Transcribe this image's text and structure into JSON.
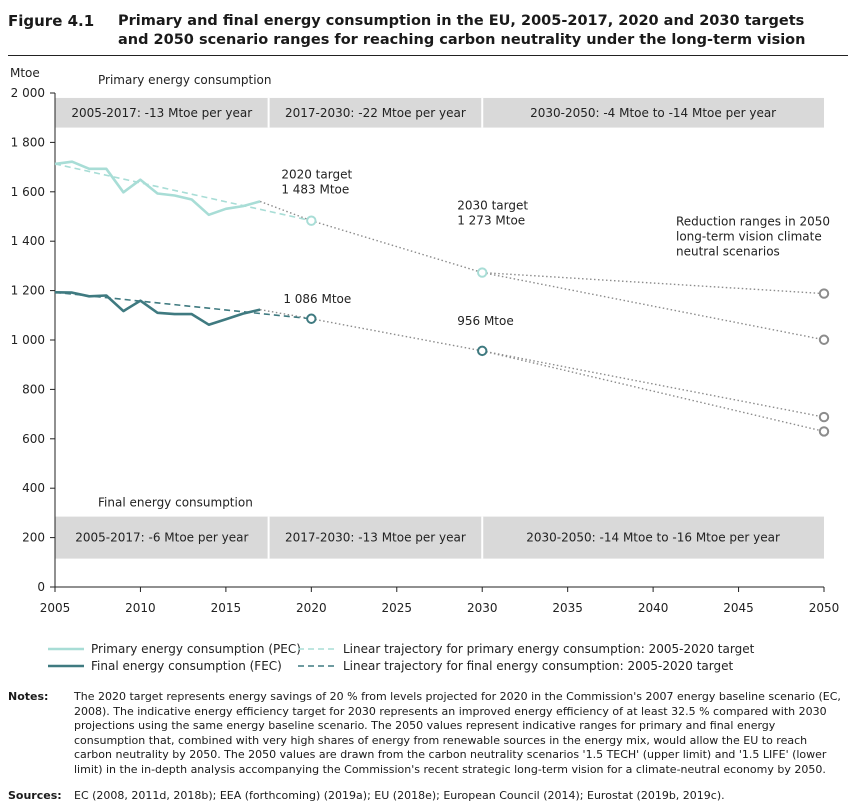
{
  "figure": {
    "number": "Figure 4.1",
    "title": "Primary and final energy consumption in the EU, 2005-2017, 2020 and 2030 targets and 2050 scenario ranges for reaching carbon neutrality under the long-term vision"
  },
  "chart_data": {
    "type": "line",
    "ylabel": "Mtoe",
    "xlim": [
      2005,
      2050
    ],
    "ylim": [
      0,
      2000
    ],
    "xticks": [
      2005,
      2010,
      2015,
      2020,
      2025,
      2030,
      2035,
      2040,
      2045,
      2050
    ],
    "yticks": [
      0,
      200,
      400,
      600,
      800,
      1000,
      1200,
      1400,
      1600,
      1800,
      2000
    ],
    "ytick_labels": [
      "0",
      "200",
      "400",
      "600",
      "800",
      "1 000",
      "1 200",
      "1 400",
      "1 600",
      "1 800",
      "2 000"
    ],
    "colors": {
      "pec": "#a8ddd6",
      "fec": "#3f7a80",
      "band": "#d9d9d9",
      "projection": "#8c8c8c"
    },
    "series": [
      {
        "name": "Primary energy consumption (PEC)",
        "x": [
          2005,
          2006,
          2007,
          2008,
          2009,
          2010,
          2011,
          2012,
          2013,
          2014,
          2015,
          2016,
          2017
        ],
        "y": [
          1713,
          1722,
          1693,
          1693,
          1598,
          1649,
          1593,
          1585,
          1569,
          1507,
          1531,
          1542,
          1561
        ]
      },
      {
        "name": "Final energy consumption (FEC)",
        "x": [
          2005,
          2006,
          2007,
          2008,
          2009,
          2010,
          2011,
          2012,
          2013,
          2014,
          2015,
          2016,
          2017
        ],
        "y": [
          1193,
          1192,
          1177,
          1180,
          1117,
          1159,
          1110,
          1105,
          1105,
          1062,
          1084,
          1107,
          1123
        ]
      },
      {
        "name": "Linear trajectory for primary energy consumption: 2005-2020 target",
        "x": [
          2005,
          2020
        ],
        "y": [
          1713,
          1483
        ]
      },
      {
        "name": "Linear trajectory for final energy consumption: 2005-2020 target",
        "x": [
          2005,
          2020
        ],
        "y": [
          1193,
          1086
        ]
      }
    ],
    "projections": [
      {
        "from": [
          2017,
          1561
        ],
        "to": [
          2020,
          1483
        ]
      },
      {
        "from": [
          2020,
          1483
        ],
        "to": [
          2030,
          1273
        ]
      },
      {
        "from": [
          2030,
          1273
        ],
        "to": [
          2050,
          1188
        ]
      },
      {
        "from": [
          2030,
          1273
        ],
        "to": [
          2050,
          1001
        ]
      },
      {
        "from": [
          2017,
          1123
        ],
        "to": [
          2020,
          1086
        ]
      },
      {
        "from": [
          2020,
          1086
        ],
        "to": [
          2030,
          956
        ]
      },
      {
        "from": [
          2030,
          956
        ],
        "to": [
          2050,
          688
        ]
      },
      {
        "from": [
          2030,
          956
        ],
        "to": [
          2050,
          630
        ]
      }
    ],
    "markers": [
      {
        "x": 2020,
        "y": 1483,
        "series": "pec"
      },
      {
        "x": 2030,
        "y": 1273,
        "series": "pec"
      },
      {
        "x": 2020,
        "y": 1086,
        "series": "fec"
      },
      {
        "x": 2030,
        "y": 956,
        "series": "fec"
      },
      {
        "x": 2050,
        "y": 1188,
        "series": "grey"
      },
      {
        "x": 2050,
        "y": 1001,
        "series": "grey"
      },
      {
        "x": 2050,
        "y": 688,
        "series": "grey"
      },
      {
        "x": 2050,
        "y": 630,
        "series": "grey"
      }
    ],
    "bands": [
      {
        "group": "Primary energy consumption",
        "x0": 2005,
        "x1": 2017.5,
        "y0": 1860,
        "y1": 1980,
        "label": "2005-2017: -13 Mtoe per year"
      },
      {
        "group": "Primary energy consumption",
        "x0": 2017.5,
        "x1": 2030,
        "y0": 1860,
        "y1": 1980,
        "label": "2017-2030: -22 Mtoe per year"
      },
      {
        "group": "Primary energy consumption",
        "x0": 2030,
        "x1": 2050,
        "y0": 1860,
        "y1": 1980,
        "label": "2030-2050: -4 Mtoe to -14 Mtoe per year"
      },
      {
        "group": "Final energy consumption",
        "x0": 2005,
        "x1": 2017.5,
        "y0": 115,
        "y1": 285,
        "label": "2005-2017: -6 Mtoe per year"
      },
      {
        "group": "Final energy consumption",
        "x0": 2017.5,
        "x1": 2030,
        "y0": 115,
        "y1": 285,
        "label": "2017-2030: -13 Mtoe per year"
      },
      {
        "group": "Final energy consumption",
        "x0": 2030,
        "x1": 2050,
        "y0": 115,
        "y1": 285,
        "label": "2030-2050: -14 Mtoe to -16 Mtoe per year"
      }
    ],
    "band_group_labels": [
      "Primary energy consumption",
      "Final energy consumption"
    ],
    "annotations": [
      {
        "x": 2020,
        "y": 1483,
        "lines": [
          "2020 target",
          "1 483 Mtoe"
        ]
      },
      {
        "x": 2030,
        "y": 1273,
        "lines": [
          "2030 target",
          "1 273 Mtoe"
        ]
      },
      {
        "x": 2020,
        "y": 1086,
        "lines": [
          "1 086 Mtoe"
        ]
      },
      {
        "x": 2030,
        "y": 956,
        "lines": [
          "956 Mtoe"
        ]
      },
      {
        "x": 2050,
        "y": 1188,
        "lines": [
          "Reduction ranges in 2050",
          "long-term vision climate",
          "neutral scenarios"
        ]
      }
    ]
  },
  "notes": {
    "label": "Notes:",
    "text": "The 2020 target represents energy savings of 20 % from levels projected for 2020 in the Commission's 2007 energy baseline scenario (EC, 2008). The indicative energy efficiency target for 2030 represents an improved energy efficiency of at least 32.5 % compared with 2030 projections using the same energy baseline scenario. The 2050 values represent indicative ranges for primary and final energy consumption that, combined with very high shares of energy from renewable sources in the energy mix, would allow the EU to reach carbon neutrality by 2050. The 2050 values are drawn from the carbon neutrality scenarios '1.5 TECH' (upper limit) and '1.5 LIFE' (lower limit) in the in-depth analysis accompanying the Commission's recent strategic long-term vision for a climate-neutral economy by 2050."
  },
  "sources": {
    "label": "Sources:",
    "text": "EC (2008, 2011d, 2018b); EEA (forthcoming) (2019a); EU (2018e); European Council (2014); Eurostat (2019b, 2019c)."
  }
}
